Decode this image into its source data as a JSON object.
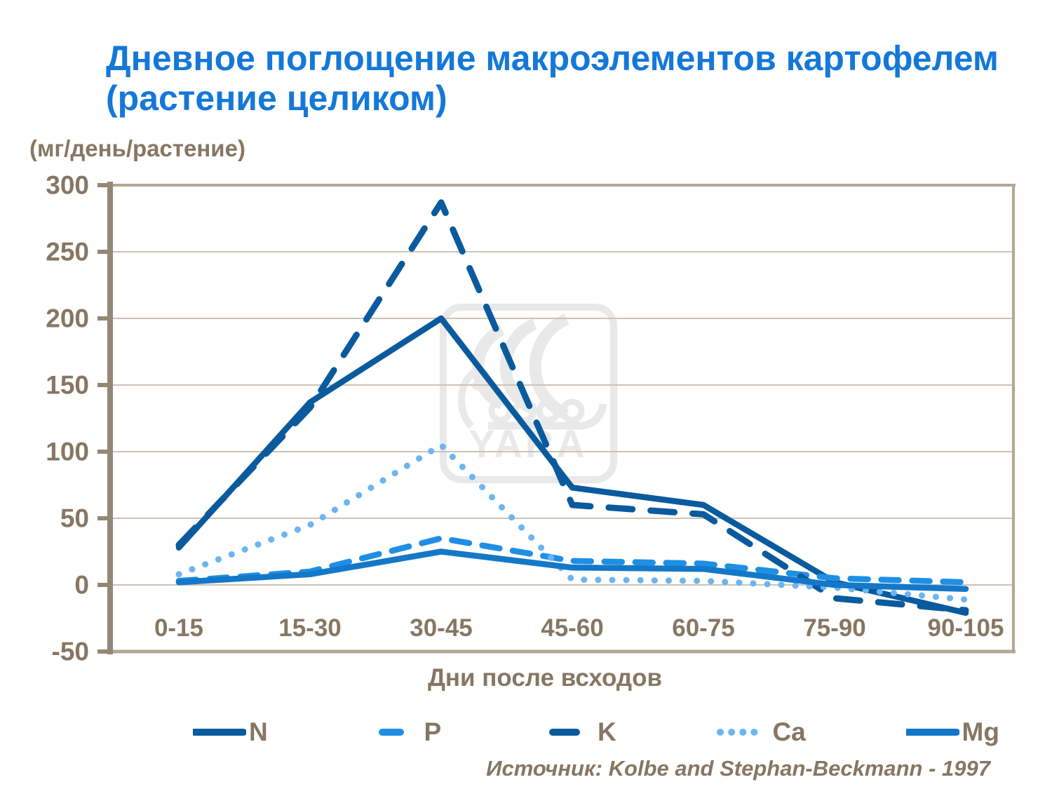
{
  "title_line1": "Дневное поглощение макроэлементов картофелем",
  "title_line2": "(растение целиком)",
  "y_unit_label": "(мг/день/растение)",
  "x_axis_label": "Дни после всходов",
  "source": "Источник: Kolbe and Stephan-Beckmann - 1997",
  "watermark": "YARA",
  "colors": {
    "title_blue": "#1478d8",
    "axis_text_brown": "#877663",
    "grid": "#cdc3b5",
    "frame": "#b3a794",
    "axis": "#948775",
    "watermark_gray": "#e9e9e9",
    "n_dark_blue": "#0a5a9e",
    "p_blue": "#1e8fe5",
    "k_dark_blue": "#0a5a9e",
    "ca_light_blue": "#6cb5f2",
    "mg_blue": "#1478c8"
  },
  "chart_data": {
    "type": "line",
    "title": "Дневное поглощение макроэлементов картофелем (растение целиком)",
    "xlabel": "Дни после всходов",
    "ylabel": "(мг/день/растение)",
    "categories": [
      "0-15",
      "15-30",
      "30-45",
      "45-60",
      "60-75",
      "75-90",
      "90-105"
    ],
    "y_ticks": [
      300,
      250,
      200,
      150,
      100,
      50,
      0,
      -50
    ],
    "ylim": [
      -50,
      300
    ],
    "grid": true,
    "legend_position": "bottom",
    "series": [
      {
        "name": "N",
        "style": "solid",
        "color_key": "n_dark_blue",
        "values": [
          28,
          137,
          200,
          73,
          60,
          2,
          -21
        ]
      },
      {
        "name": "P",
        "style": "dashed-short",
        "color_key": "p_blue",
        "values": [
          3,
          10,
          35,
          18,
          16,
          5,
          2
        ]
      },
      {
        "name": "K",
        "style": "dashed",
        "color_key": "k_dark_blue",
        "values": [
          30,
          133,
          287,
          60,
          53,
          -10,
          -19
        ]
      },
      {
        "name": "Ca",
        "style": "dotted",
        "color_key": "ca_light_blue",
        "values": [
          8,
          45,
          105,
          4,
          3,
          -2,
          -11
        ]
      },
      {
        "name": "Mg",
        "style": "solid",
        "color_key": "mg_blue",
        "values": [
          2,
          8,
          25,
          13,
          12,
          0,
          -3
        ]
      }
    ]
  }
}
